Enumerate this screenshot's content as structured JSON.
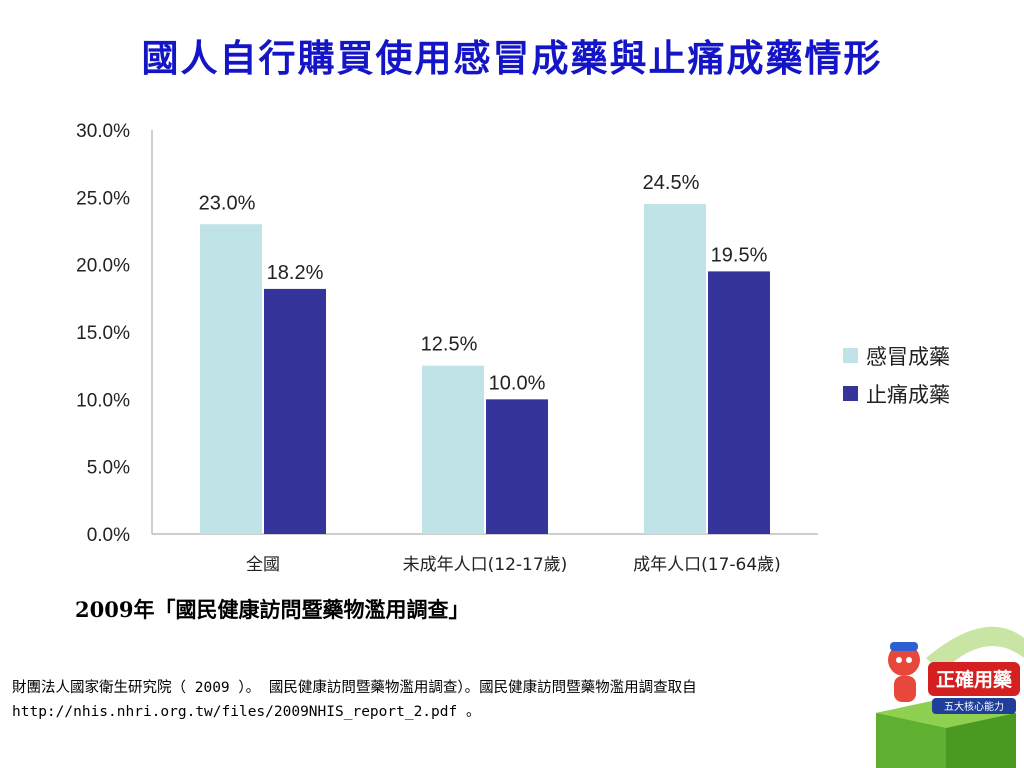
{
  "title": "國人自行購買使用感冒成藥與止痛成藥情形",
  "source_title": "2009年「國民健康訪問暨藥物濫用調查」",
  "citation": "財團法人國家衛生研究院（ 2009 ）。 國民健康訪問暨藥物濫用調查）。國民健康訪問暨藥物濫用調查取自http://nhis.nhri.org.tw/files/2009NHIS_report_2.pdf 。",
  "logo": {
    "text": "正確用藥",
    "subtext": "五大核心能力"
  },
  "colors": {
    "title": "#1515c8",
    "series_cold": "#bfe3e6",
    "series_pain": "#34349a"
  },
  "chart_data": {
    "type": "bar",
    "categories": [
      "全國",
      "未成年人口(12-17歲)",
      "成年人口(17-64歲)"
    ],
    "series": [
      {
        "name": "感冒成藥",
        "values": [
          23.0,
          12.5,
          24.5
        ],
        "labels": [
          "23.0%",
          "12.5%",
          "24.5%"
        ],
        "color": "#bfe3e6"
      },
      {
        "name": "止痛成藥",
        "values": [
          18.2,
          10.0,
          19.5
        ],
        "labels": [
          "18.2%",
          "10.0%",
          "19.5%"
        ],
        "color": "#34349a"
      }
    ],
    "ylim": [
      0,
      30
    ],
    "yticks": [
      0,
      5,
      10,
      15,
      20,
      25,
      30
    ],
    "ytick_labels": [
      "0.0%",
      "5.0%",
      "10.0%",
      "15.0%",
      "20.0%",
      "25.0%",
      "30.0%"
    ],
    "grid": false,
    "legend_position": "right"
  }
}
